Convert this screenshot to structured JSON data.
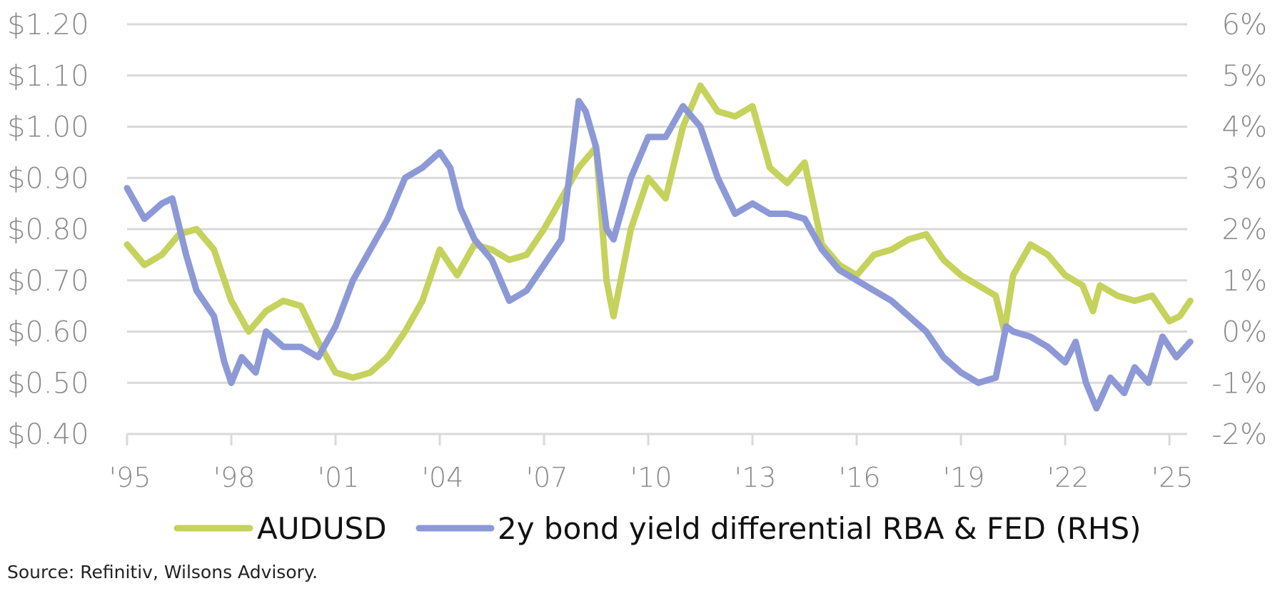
{
  "chart_data": {
    "type": "line",
    "title": "",
    "source": "Source: Refinitiv, Wilsons Advisory.",
    "x_ticks": [
      {
        "year": 1995,
        "label": "'95"
      },
      {
        "year": 1998,
        "label": "'98"
      },
      {
        "year": 2001,
        "label": "'01"
      },
      {
        "year": 2004,
        "label": "'04"
      },
      {
        "year": 2007,
        "label": "'07"
      },
      {
        "year": 2010,
        "label": "'10"
      },
      {
        "year": 2013,
        "label": "'13"
      },
      {
        "year": 2016,
        "label": "'16"
      },
      {
        "year": 2019,
        "label": "'19"
      },
      {
        "year": 2022,
        "label": "'22"
      },
      {
        "year": 2025,
        "label": "'25"
      }
    ],
    "xlim": [
      1995,
      2025.6
    ],
    "left_axis": {
      "ylim": [
        0.4,
        1.2
      ],
      "ticks": [
        {
          "v": 1.2,
          "label": "$1.20"
        },
        {
          "v": 1.1,
          "label": "$1.10"
        },
        {
          "v": 1.0,
          "label": "$1.00"
        },
        {
          "v": 0.9,
          "label": "$0.90"
        },
        {
          "v": 0.8,
          "label": "$0.80"
        },
        {
          "v": 0.7,
          "label": "$0.70"
        },
        {
          "v": 0.6,
          "label": "$0.60"
        },
        {
          "v": 0.5,
          "label": "$0.50"
        },
        {
          "v": 0.4,
          "label": "$0.40"
        }
      ]
    },
    "right_axis": {
      "ylim": [
        -2,
        6
      ],
      "ticks": [
        {
          "v": 6,
          "label": "6%"
        },
        {
          "v": 5,
          "label": "5%"
        },
        {
          "v": 4,
          "label": "4%"
        },
        {
          "v": 3,
          "label": "3%"
        },
        {
          "v": 2,
          "label": "2%"
        },
        {
          "v": 1,
          "label": "1%"
        },
        {
          "v": 0,
          "label": "0%"
        },
        {
          "v": -1,
          "label": "-1%"
        },
        {
          "v": -2,
          "label": "-2%"
        }
      ]
    },
    "grid": true,
    "legend_position": "bottom",
    "series": [
      {
        "name": "AUDUSD",
        "axis": "left",
        "color": "#c5d25c",
        "points": [
          [
            1995.0,
            0.77
          ],
          [
            1995.5,
            0.73
          ],
          [
            1996,
            0.75
          ],
          [
            1996.5,
            0.79
          ],
          [
            1997,
            0.8
          ],
          [
            1997.5,
            0.76
          ],
          [
            1998,
            0.66
          ],
          [
            1998.5,
            0.6
          ],
          [
            1999,
            0.64
          ],
          [
            1999.5,
            0.66
          ],
          [
            2000,
            0.65
          ],
          [
            2000.5,
            0.58
          ],
          [
            2001,
            0.52
          ],
          [
            2001.5,
            0.51
          ],
          [
            2002,
            0.52
          ],
          [
            2002.5,
            0.55
          ],
          [
            2003,
            0.6
          ],
          [
            2003.5,
            0.66
          ],
          [
            2004,
            0.76
          ],
          [
            2004.5,
            0.71
          ],
          [
            2005,
            0.77
          ],
          [
            2005.5,
            0.76
          ],
          [
            2006,
            0.74
          ],
          [
            2006.5,
            0.75
          ],
          [
            2007,
            0.8
          ],
          [
            2007.5,
            0.86
          ],
          [
            2008,
            0.92
          ],
          [
            2008.5,
            0.96
          ],
          [
            2008.8,
            0.7
          ],
          [
            2009,
            0.63
          ],
          [
            2009.5,
            0.8
          ],
          [
            2010,
            0.9
          ],
          [
            2010.5,
            0.86
          ],
          [
            2011,
            1.0
          ],
          [
            2011.5,
            1.08
          ],
          [
            2012,
            1.03
          ],
          [
            2012.5,
            1.02
          ],
          [
            2013,
            1.04
          ],
          [
            2013.5,
            0.92
          ],
          [
            2014,
            0.89
          ],
          [
            2014.5,
            0.93
          ],
          [
            2015,
            0.77
          ],
          [
            2015.5,
            0.73
          ],
          [
            2016,
            0.71
          ],
          [
            2016.5,
            0.75
          ],
          [
            2017,
            0.76
          ],
          [
            2017.5,
            0.78
          ],
          [
            2018,
            0.79
          ],
          [
            2018.5,
            0.74
          ],
          [
            2019,
            0.71
          ],
          [
            2019.5,
            0.69
          ],
          [
            2020,
            0.67
          ],
          [
            2020.25,
            0.6
          ],
          [
            2020.5,
            0.71
          ],
          [
            2021,
            0.77
          ],
          [
            2021.5,
            0.75
          ],
          [
            2022,
            0.71
          ],
          [
            2022.5,
            0.69
          ],
          [
            2022.8,
            0.64
          ],
          [
            2023,
            0.69
          ],
          [
            2023.5,
            0.67
          ],
          [
            2024,
            0.66
          ],
          [
            2024.5,
            0.67
          ],
          [
            2025,
            0.62
          ],
          [
            2025.3,
            0.63
          ],
          [
            2025.6,
            0.66
          ]
        ]
      },
      {
        "name": "2y bond yield differential RBA & FED (RHS)",
        "axis": "right",
        "color": "#8c99d6",
        "points": [
          [
            1995.0,
            2.8
          ],
          [
            1995.5,
            2.2
          ],
          [
            1996,
            2.5
          ],
          [
            1996.3,
            2.6
          ],
          [
            1996.7,
            1.5
          ],
          [
            1997,
            0.8
          ],
          [
            1997.5,
            0.3
          ],
          [
            1997.8,
            -0.6
          ],
          [
            1998,
            -1.0
          ],
          [
            1998.3,
            -0.5
          ],
          [
            1998.7,
            -0.8
          ],
          [
            1999,
            0.0
          ],
          [
            1999.5,
            -0.3
          ],
          [
            2000,
            -0.3
          ],
          [
            2000.5,
            -0.5
          ],
          [
            2001,
            0.1
          ],
          [
            2001.5,
            1.0
          ],
          [
            2002,
            1.6
          ],
          [
            2002.5,
            2.2
          ],
          [
            2003,
            3.0
          ],
          [
            2003.5,
            3.2
          ],
          [
            2004,
            3.5
          ],
          [
            2004.3,
            3.2
          ],
          [
            2004.6,
            2.4
          ],
          [
            2005,
            1.8
          ],
          [
            2005.5,
            1.4
          ],
          [
            2006,
            0.6
          ],
          [
            2006.5,
            0.8
          ],
          [
            2007,
            1.3
          ],
          [
            2007.5,
            1.8
          ],
          [
            2008,
            4.5
          ],
          [
            2008.2,
            4.3
          ],
          [
            2008.5,
            3.6
          ],
          [
            2008.8,
            2.0
          ],
          [
            2009,
            1.8
          ],
          [
            2009.5,
            3.0
          ],
          [
            2010,
            3.8
          ],
          [
            2010.5,
            3.8
          ],
          [
            2011,
            4.4
          ],
          [
            2011.5,
            4.0
          ],
          [
            2012,
            3.0
          ],
          [
            2012.5,
            2.3
          ],
          [
            2013,
            2.5
          ],
          [
            2013.5,
            2.3
          ],
          [
            2014,
            2.3
          ],
          [
            2014.5,
            2.2
          ],
          [
            2015,
            1.6
          ],
          [
            2015.5,
            1.2
          ],
          [
            2016,
            1.0
          ],
          [
            2016.5,
            0.8
          ],
          [
            2017,
            0.6
          ],
          [
            2017.5,
            0.3
          ],
          [
            2018,
            0.0
          ],
          [
            2018.5,
            -0.5
          ],
          [
            2019,
            -0.8
          ],
          [
            2019.5,
            -1.0
          ],
          [
            2020,
            -0.9
          ],
          [
            2020.3,
            0.1
          ],
          [
            2020.5,
            0.0
          ],
          [
            2021,
            -0.1
          ],
          [
            2021.5,
            -0.3
          ],
          [
            2022,
            -0.6
          ],
          [
            2022.3,
            -0.2
          ],
          [
            2022.6,
            -1.0
          ],
          [
            2022.9,
            -1.5
          ],
          [
            2023.3,
            -0.9
          ],
          [
            2023.7,
            -1.2
          ],
          [
            2024,
            -0.7
          ],
          [
            2024.4,
            -1.0
          ],
          [
            2024.8,
            -0.1
          ],
          [
            2025.2,
            -0.5
          ],
          [
            2025.6,
            -0.2
          ]
        ]
      }
    ]
  }
}
